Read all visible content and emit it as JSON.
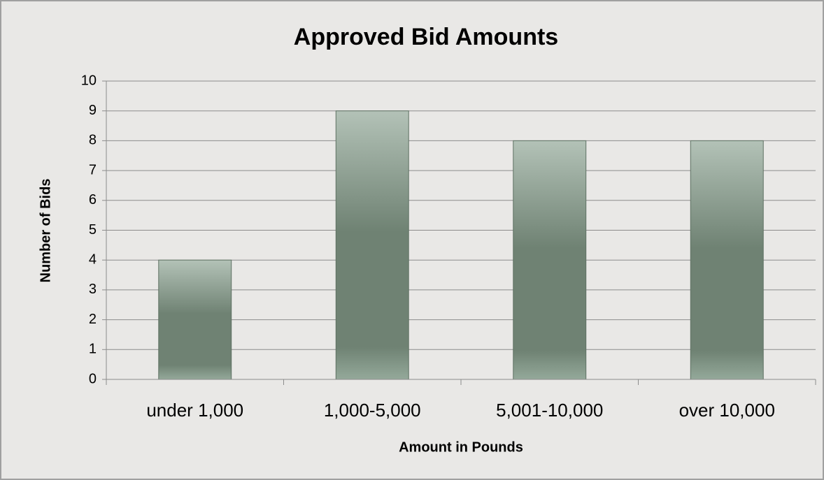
{
  "chart_data": {
    "type": "bar",
    "title": "Approved Bid Amounts",
    "x_label": "Amount in Pounds",
    "y_label": "Number of Bids",
    "categories": [
      "under 1,000",
      "1,000-5,000",
      "5,001-10,000",
      "over 10,000"
    ],
    "values": [
      4,
      9,
      8,
      8
    ],
    "color": "#6f8273",
    "ylim": [
      0,
      10
    ],
    "yticks": [
      0,
      1,
      2,
      3,
      4,
      5,
      6,
      7,
      8,
      9,
      10
    ],
    "grid": true
  }
}
